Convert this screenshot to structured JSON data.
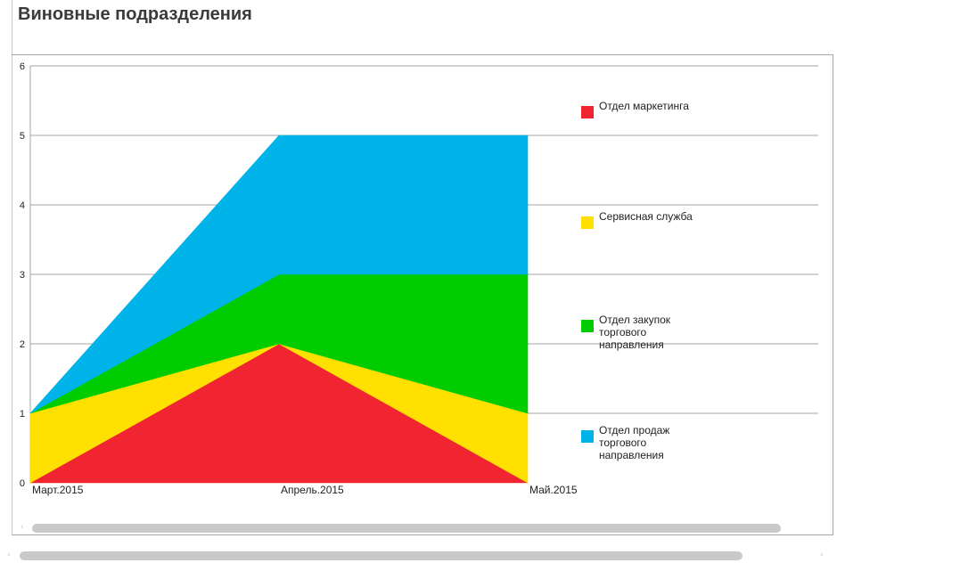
{
  "title": "Виновные подразделения",
  "chart_data": {
    "type": "area",
    "stacked": true,
    "categories": [
      "Март.2015",
      "Апрель.2015",
      "Май.2015"
    ],
    "yticks": [
      0,
      1,
      2,
      3,
      4,
      5,
      6
    ],
    "ylim": [
      0,
      6
    ],
    "grid": true,
    "legend_position": "right",
    "series": [
      {
        "name": "Отдел маркетинга",
        "values": [
          0,
          2,
          0
        ],
        "color": "#f02531"
      },
      {
        "name": "Сервисная служба",
        "values": [
          1,
          0,
          1
        ],
        "color": "#ffe000"
      },
      {
        "name": "Отдел закупок торгового направления",
        "values": [
          0,
          1,
          2
        ],
        "color": "#00cc00"
      },
      {
        "name": "Отдел продаж торгового направления",
        "values": [
          0,
          2,
          2
        ],
        "color": "#00b3e8"
      }
    ]
  },
  "icons": {
    "scroll_left": "chevron-left-icon",
    "scroll_right": "chevron-right-icon"
  }
}
